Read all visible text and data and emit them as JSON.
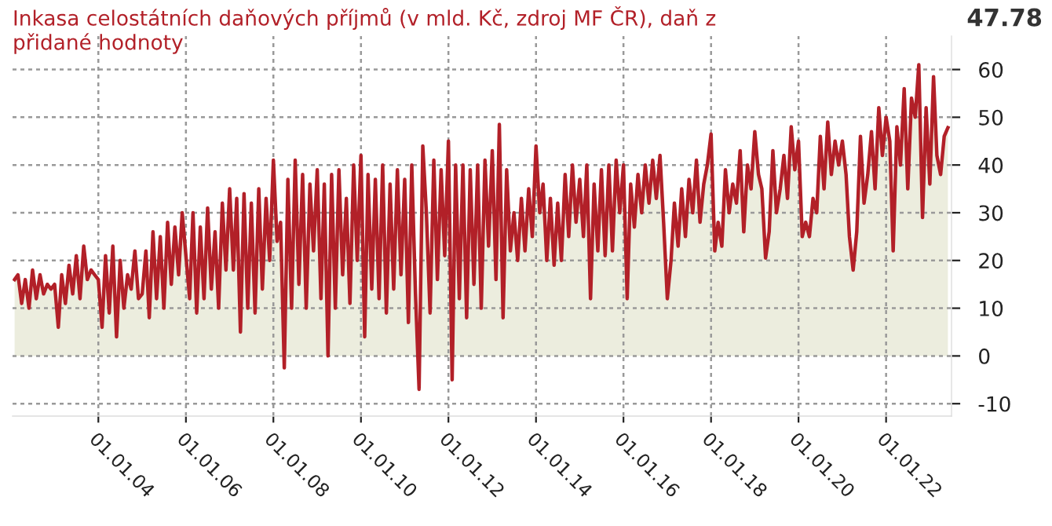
{
  "chart_data": {
    "type": "area",
    "title": "Inkasa celostátních daňových příjmů (v mld. Kč, zdroj MF ČR), daň z přidané hodnoty",
    "annotations": [
      "47.78"
    ],
    "x": [
      "2002-02",
      "2002-03",
      "2002-04",
      "2002-05",
      "2002-06",
      "2002-07",
      "2002-08",
      "2002-09",
      "2002-10",
      "2002-11",
      "2002-12",
      "2003-01",
      "2003-02",
      "2003-03",
      "2003-04",
      "2003-05",
      "2003-06",
      "2003-07",
      "2003-08",
      "2003-09",
      "2003-10",
      "2003-11",
      "2003-12",
      "2004-01",
      "2004-02",
      "2004-03",
      "2004-04",
      "2004-05",
      "2004-06",
      "2004-07",
      "2004-08",
      "2004-09",
      "2004-10",
      "2004-11",
      "2004-12",
      "2005-01",
      "2005-02",
      "2005-03",
      "2005-04",
      "2005-05",
      "2005-06",
      "2005-07",
      "2005-08",
      "2005-09",
      "2005-10",
      "2005-11",
      "2005-12",
      "2006-01",
      "2006-02",
      "2006-03",
      "2006-04",
      "2006-05",
      "2006-06",
      "2006-07",
      "2006-08",
      "2006-09",
      "2006-10",
      "2006-11",
      "2006-12",
      "2007-01",
      "2007-02",
      "2007-03",
      "2007-04",
      "2007-05",
      "2007-06",
      "2007-07",
      "2007-08",
      "2007-09",
      "2007-10",
      "2007-11",
      "2007-12",
      "2008-01",
      "2008-02",
      "2008-03",
      "2008-04",
      "2008-05",
      "2008-06",
      "2008-07",
      "2008-08",
      "2008-09",
      "2008-10",
      "2008-11",
      "2008-12",
      "2009-01",
      "2009-02",
      "2009-03",
      "2009-04",
      "2009-05",
      "2009-06",
      "2009-07",
      "2009-08",
      "2009-09",
      "2009-10",
      "2009-11",
      "2009-12",
      "2010-01",
      "2010-02",
      "2010-03",
      "2010-04",
      "2010-05",
      "2010-06",
      "2010-07",
      "2010-08",
      "2010-09",
      "2010-10",
      "2010-11",
      "2010-12",
      "2011-01",
      "2011-02",
      "2011-03",
      "2011-04",
      "2011-05",
      "2011-06",
      "2011-07",
      "2011-08",
      "2011-09",
      "2011-10",
      "2011-11",
      "2011-12",
      "2012-01",
      "2012-02",
      "2012-03",
      "2012-04",
      "2012-05",
      "2012-06",
      "2012-07",
      "2012-08",
      "2012-09",
      "2012-10",
      "2012-11",
      "2012-12",
      "2013-01",
      "2013-02",
      "2013-03",
      "2013-04",
      "2013-05",
      "2013-06",
      "2013-07",
      "2013-08",
      "2013-09",
      "2013-10",
      "2013-11",
      "2013-12",
      "2014-01",
      "2014-02",
      "2014-03",
      "2014-04",
      "2014-05",
      "2014-06",
      "2014-07",
      "2014-08",
      "2014-09",
      "2014-10",
      "2014-11",
      "2014-12",
      "2015-01",
      "2015-02",
      "2015-03",
      "2015-04",
      "2015-05",
      "2015-06",
      "2015-07",
      "2015-08",
      "2015-09",
      "2015-10",
      "2015-11",
      "2015-12",
      "2016-01",
      "2016-02",
      "2016-03",
      "2016-04",
      "2016-05",
      "2016-06",
      "2016-07",
      "2016-08",
      "2016-09",
      "2016-10",
      "2016-11",
      "2016-12",
      "2017-01",
      "2017-02",
      "2017-03",
      "2017-04",
      "2017-05",
      "2017-06",
      "2017-07",
      "2017-08",
      "2017-09",
      "2017-10",
      "2017-11",
      "2017-12",
      "2018-01",
      "2018-02",
      "2018-03",
      "2018-04",
      "2018-05",
      "2018-06",
      "2018-07",
      "2018-08",
      "2018-09",
      "2018-10",
      "2018-11",
      "2018-12",
      "2019-01",
      "2019-02",
      "2019-03",
      "2019-04",
      "2019-05",
      "2019-06",
      "2019-07",
      "2019-08",
      "2019-09",
      "2019-10",
      "2019-11",
      "2019-12",
      "2020-01",
      "2020-02",
      "2020-03",
      "2020-04",
      "2020-05",
      "2020-06",
      "2020-07",
      "2020-08",
      "2020-09",
      "2020-10",
      "2020-11",
      "2020-12",
      "2021-01",
      "2021-02",
      "2021-03",
      "2021-04",
      "2021-05",
      "2021-06",
      "2021-07",
      "2021-08",
      "2021-09",
      "2021-10",
      "2021-11",
      "2021-12",
      "2022-01",
      "2022-02",
      "2022-03",
      "2022-04",
      "2022-05",
      "2022-06",
      "2022-07",
      "2022-08",
      "2022-09",
      "2022-10",
      "2022-11",
      "2022-12",
      "2023-01",
      "2023-02",
      "2023-03",
      "2023-04",
      "2023-05",
      "2023-06"
    ],
    "series": [
      {
        "color": "#b22028",
        "values": [
          16,
          17,
          11,
          16,
          10,
          18,
          12,
          17,
          13,
          15,
          14,
          15,
          6,
          17,
          11,
          19,
          13,
          21,
          12,
          23,
          16,
          18,
          17,
          16,
          6,
          21,
          9,
          23,
          4,
          20,
          10,
          17,
          14,
          22,
          12,
          13,
          22,
          8,
          26,
          12,
          25,
          10,
          28,
          15,
          27,
          17,
          30,
          21,
          12,
          30,
          9,
          27,
          12,
          31,
          14,
          26,
          10,
          32,
          18,
          35,
          18,
          33,
          5,
          34,
          10,
          32,
          9,
          35,
          14,
          33,
          20,
          41,
          24,
          28,
          -2.5,
          37,
          10,
          41,
          15,
          38,
          10,
          36,
          22,
          39,
          12,
          36,
          0,
          38,
          10,
          39,
          17,
          33,
          11,
          40,
          20,
          42,
          4,
          38,
          14,
          37,
          12,
          40,
          9,
          36,
          14,
          39,
          17,
          37,
          7,
          40,
          13,
          -7,
          44,
          30,
          9,
          41,
          16,
          39,
          21,
          45,
          -5,
          40,
          12,
          40,
          8,
          39,
          15,
          40,
          10,
          41,
          23,
          43,
          16,
          48.5,
          8,
          39,
          22,
          30,
          20,
          33,
          22,
          35,
          25,
          44,
          30,
          36,
          20,
          33,
          19,
          32,
          20,
          38,
          25,
          40,
          28,
          37,
          25,
          40,
          12,
          36,
          22,
          39,
          21,
          40,
          22,
          41,
          30,
          40,
          12,
          36,
          27,
          38,
          30,
          40,
          32,
          41,
          33,
          42,
          28,
          12,
          20,
          32,
          23,
          35,
          25,
          37,
          30,
          41,
          28,
          36,
          40,
          46.5,
          22,
          28,
          23,
          39,
          30,
          36,
          32,
          43,
          26,
          40,
          35,
          47,
          38,
          35,
          20.5,
          26,
          43,
          30,
          35,
          42,
          33,
          48,
          39,
          45,
          25,
          28,
          25,
          33,
          30,
          46,
          35,
          49,
          38,
          45,
          40,
          45,
          38,
          25,
          18,
          26,
          46,
          32,
          38,
          47,
          35,
          52,
          42,
          50,
          45,
          22,
          48,
          40,
          56,
          35,
          54,
          50,
          61,
          29,
          52,
          36,
          58.5,
          42,
          38,
          46,
          47.8
        ]
      }
    ],
    "xlim": [
      "2002-01-15",
      "2023-07-01"
    ],
    "ylim": [
      -12.6,
      67
    ],
    "yticks": [
      -10,
      0,
      10,
      20,
      30,
      40,
      50,
      60
    ],
    "xticks": [
      {
        "value": "2004-01-01",
        "label": "01.01.04"
      },
      {
        "value": "2006-01-01",
        "label": "01.01.06"
      },
      {
        "value": "2008-01-01",
        "label": "01.01.08"
      },
      {
        "value": "2010-01-01",
        "label": "01.01.10"
      },
      {
        "value": "2012-01-01",
        "label": "01.01.12"
      },
      {
        "value": "2014-01-01",
        "label": "01.01.14"
      },
      {
        "value": "2016-01-01",
        "label": "01.01.16"
      },
      {
        "value": "2018-01-01",
        "label": "01.01.18"
      },
      {
        "value": "2020-01-01",
        "label": "01.01.20"
      },
      {
        "value": "2022-01-01",
        "label": "01.01.22"
      }
    ],
    "grid": true
  }
}
